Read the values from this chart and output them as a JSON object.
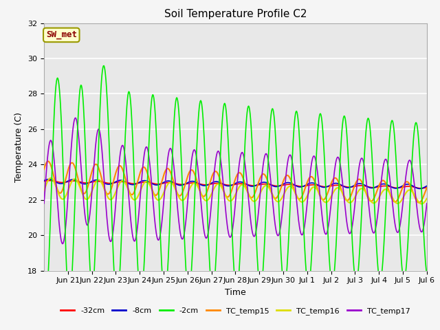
{
  "title": "Soil Temperature Profile C2",
  "xlabel": "Time",
  "ylabel": "Temperature (C)",
  "ylim": [
    18,
    32
  ],
  "yticks": [
    18,
    20,
    22,
    24,
    26,
    28,
    30,
    32
  ],
  "annotation": "SW_met",
  "annotation_color": "#8B0000",
  "annotation_bg": "#FFFFCC",
  "annotation_border": "#999900",
  "series_colors": {
    "-32cm": "#FF0000",
    "-8cm": "#0000CC",
    "-2cm": "#00EE00",
    "TC_temp15": "#FF8800",
    "TC_temp16": "#DDDD00",
    "TC_temp17": "#9900CC"
  },
  "line_width": 1.2,
  "plot_bg": "#E8E8E8",
  "fig_bg": "#F5F5F5",
  "grid_color": "#FFFFFF",
  "tick_fontsize": 8,
  "title_fontsize": 11,
  "label_fontsize": 9
}
